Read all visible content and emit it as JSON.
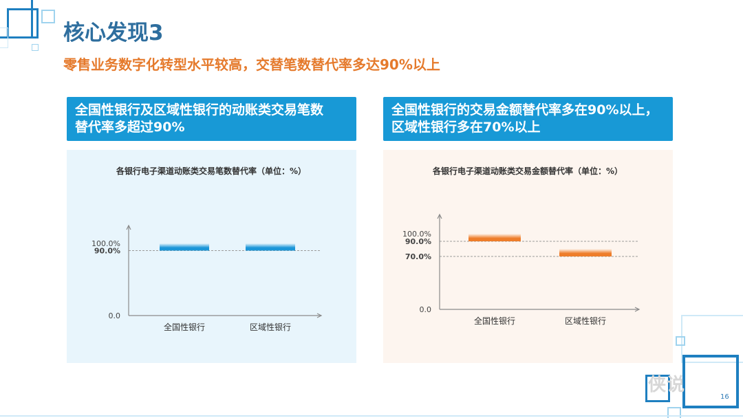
{
  "slide": {
    "title": "核心发现3",
    "subtitle": "零售业务数字化转型水平较高，交替笔数替代率多达90%以上",
    "page_number": "16",
    "watermark": "侠说"
  },
  "colors": {
    "title": "#2e6e9e",
    "subtitle": "#e57a2c",
    "header": "#1899d6",
    "left_bar": "#1b96d8",
    "right_bar": "#ee7d2a"
  },
  "panels": [
    {
      "header_line1": "全国性银行及区域性银行的动账类交易笔数",
      "header_line2": "替代率多超过90%"
    },
    {
      "header_line1": "全国性银行的交易金额替代率多在90%以上，",
      "header_line2": "区域性银行多在70%以上"
    }
  ],
  "chart_data": [
    {
      "type": "bar",
      "style": "floating range bars",
      "title": "各银行电子渠道动账类交易笔数替代率（单位：%）",
      "categories": [
        "全国性银行",
        "区域性银行"
      ],
      "ranges": [
        [
          90,
          100
        ],
        [
          90,
          100
        ]
      ],
      "ylim": [
        0,
        100
      ],
      "yticks": [
        "0.0",
        "90.0%",
        "100.0%"
      ],
      "bold_ticks": [
        "90.0%"
      ],
      "reference_lines": [
        90
      ],
      "color": "#1b96d8",
      "background": "#e8f5fc"
    },
    {
      "type": "bar",
      "style": "floating range bars",
      "title": "各银行电子渠道动账类交易金额替代率（单位：%）",
      "categories": [
        "全国性银行",
        "区域性银行"
      ],
      "ranges": [
        [
          90,
          100
        ],
        [
          70,
          80
        ]
      ],
      "ylim": [
        0,
        100
      ],
      "yticks": [
        "0.0",
        "70.0%",
        "90.0%",
        "100.0%"
      ],
      "bold_ticks": [
        "70.0%",
        "90.0%"
      ],
      "reference_lines": [
        90,
        70
      ],
      "color": "#ee7d2a",
      "background": "#fdf5ef"
    }
  ]
}
